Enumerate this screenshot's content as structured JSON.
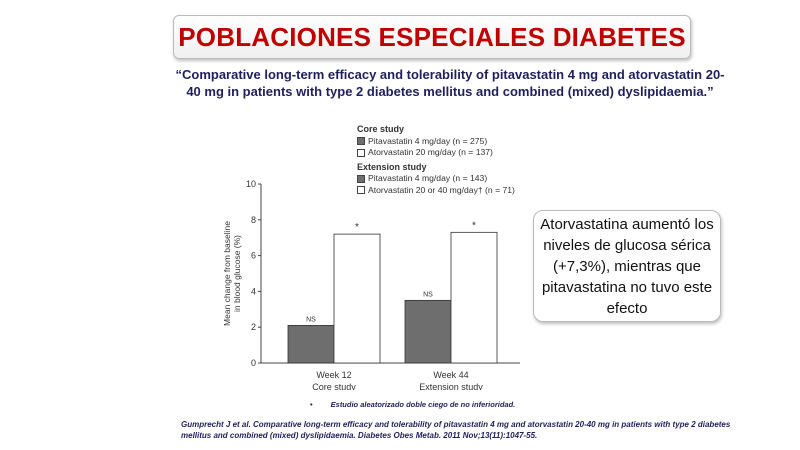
{
  "slide": {
    "title": "POBLACIONES ESPECIALES DIABETES",
    "subtitle": "“Comparative long-term efficacy and tolerability of pitavastatin 4 mg and atorvastatin 20-40 mg in patients with type 2 diabetes mellitus and combined (mixed) dyslipidaemia.”",
    "callout": "Atorvastatina aumentó los niveles de glucosa sérica (+7,3%), mientras que pitavastatina no tuvo este efecto",
    "note": "Estudio aleatorizado doble ciego de no inferioridad.",
    "note_bullet": "•",
    "reference": "Gumprecht J et al. Comparative long-term efficacy and tolerability of pitavastatin 4 mg and atorvastatin 20-40 mg in patients with type 2 diabetes mellitus and combined (mixed) dyslipidaemia. Diabetes Obes Metab. 2011 Nov;13(11):1047-55.",
    "colors": {
      "title": "#c00000",
      "text": "#1f1f5c",
      "pitavastatin": "#6e6e6e",
      "atorvastatin": "#ffffff"
    }
  },
  "chart_data": {
    "type": "bar",
    "categories": [
      [
        "Week 12",
        "Core study"
      ],
      [
        "Week 44",
        "Extension study"
      ]
    ],
    "ylabel": [
      "Mean change from baseline",
      "in blood glucose (%)"
    ],
    "ylim": [
      0,
      10
    ],
    "yticks": [
      "0",
      "2",
      "4",
      "6",
      "8",
      "10"
    ],
    "grid": false,
    "legend": {
      "placement": "top",
      "groups": [
        {
          "heading": "Core study",
          "entries": [
            "Pitavastatin 4 mg/day (n = 275)",
            "Atorvastatin 20 mg/day (n = 137)"
          ]
        },
        {
          "heading": "Extension study",
          "entries": [
            "Pitavastatin 4 mg/day (n = 143)",
            "Atorvastatin 20 or 40 mg/day† (n = 71)"
          ]
        }
      ]
    },
    "series": [
      {
        "name": "Pitavastatin 4 mg/day",
        "values": [
          2.1,
          3.5
        ],
        "labels": [
          "NS",
          "NS"
        ],
        "color": "#6e6e6e"
      },
      {
        "name": "Atorvastatin",
        "values": [
          7.2,
          7.3
        ],
        "labels": [
          "*",
          "*"
        ],
        "color": "#ffffff"
      }
    ]
  }
}
